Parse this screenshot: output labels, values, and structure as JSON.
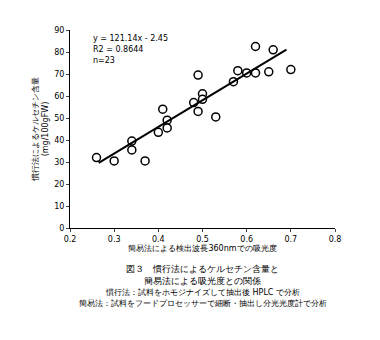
{
  "chart_data": {
    "type": "scatter",
    "xlabel": "簡易法による検出波長360nmでの吸光度",
    "ylabel": [
      "慣行法によるケルセチン含量",
      "(mg/100gFW)"
    ],
    "annotations": [
      "y = 121.14x - 2.45",
      "R2 = 0.8644",
      "n=23"
    ],
    "caption": [
      "図３　慣行法によるケルセチン含量と",
      "簡易法による吸光度との関係"
    ],
    "notes": [
      "慣行法：試料をホモジナイズして抽出後 HPLC で分析",
      "簡易法：試料をフードプロセッサーで細断・抽出し分光光度計で分析"
    ],
    "series": [
      {
        "type": "scatter",
        "marker": "circle",
        "color": "#000000",
        "x": [
          0.26,
          0.3,
          0.34,
          0.34,
          0.37,
          0.4,
          0.41,
          0.42,
          0.42,
          0.48,
          0.49,
          0.49,
          0.5,
          0.5,
          0.53,
          0.57,
          0.58,
          0.6,
          0.62,
          0.62,
          0.65,
          0.66,
          0.7
        ],
        "values": [
          32,
          30.5,
          35.5,
          39.5,
          30.5,
          43.5,
          54,
          49,
          45.5,
          57,
          53,
          69.5,
          61,
          58.5,
          50.5,
          66.5,
          71.5,
          70.5,
          82.5,
          70.5,
          71,
          81,
          72
        ]
      },
      {
        "type": "line",
        "line_style": "solid",
        "color": "#000000",
        "x": [
          0.265,
          0.69
        ],
        "values": [
          29.6,
          81.1
        ]
      }
    ],
    "xlim": [
      0.2,
      0.8
    ],
    "xticks": [
      0.2,
      0.3,
      0.4,
      0.5,
      0.6,
      0.7,
      0.8
    ],
    "ylim": [
      0,
      90
    ],
    "yticks": [
      0,
      10,
      20,
      30,
      40,
      50,
      60,
      70,
      80,
      90
    ],
    "grid": false
  }
}
